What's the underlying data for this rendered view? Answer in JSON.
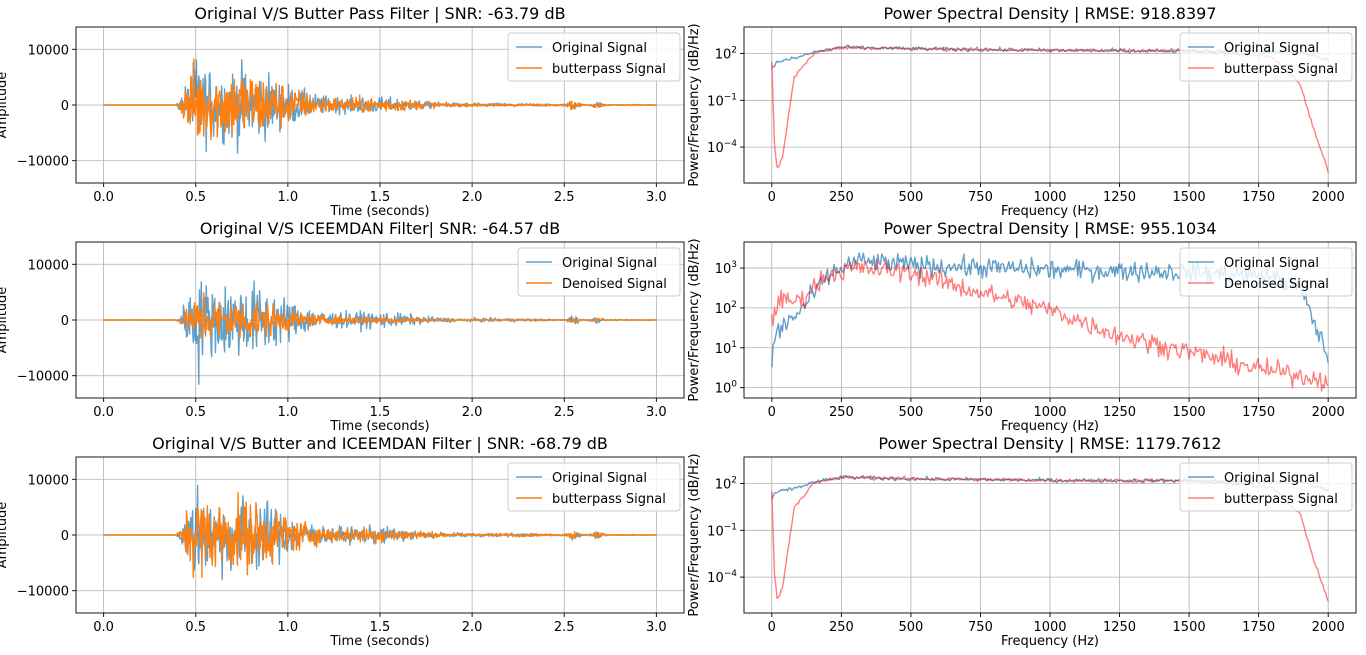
{
  "chart_data": [
    {
      "type": "line",
      "title": "Original V/S Butter Pass Filter | SNR: -63.79 dB",
      "xlabel": "Time (seconds)",
      "ylabel": "Amplitude",
      "xlim": [
        -0.15,
        3.15
      ],
      "ylim": [
        -14000,
        14000
      ],
      "xticks": [
        0.0,
        0.5,
        1.0,
        1.5,
        2.0,
        2.5,
        3.0
      ],
      "xtick_labels": [
        "0.0",
        "0.5",
        "1.0",
        "1.5",
        "2.0",
        "2.5",
        "3.0"
      ],
      "yticks": [
        -10000,
        0,
        10000
      ],
      "ytick_labels": [
        "−10000",
        "0",
        "10000"
      ],
      "yscale": "linear",
      "grid": true,
      "legend": "upper right",
      "series": [
        {
          "name": "Original Signal",
          "color": "#1f77b4",
          "alpha": 0.7,
          "envelope": {
            "onset": 0.39,
            "peak_time": 0.52,
            "peak": 12000,
            "decay": 0.45,
            "sub_bursts": [
              [
                2.55,
                900
              ],
              [
                2.68,
                600
              ]
            ]
          }
        },
        {
          "name": "butterpass Signal",
          "color": "#ff7f0e",
          "alpha": 1.0,
          "envelope": {
            "onset": 0.39,
            "peak_time": 0.52,
            "peak": 11500,
            "decay": 0.45,
            "sub_bursts": [
              [
                2.55,
                850
              ],
              [
                2.68,
                560
              ]
            ]
          }
        }
      ]
    },
    {
      "type": "line",
      "title": "Power Spectral Density | RMSE: 918.8397",
      "xlabel": "Frequency (Hz)",
      "ylabel": "Power/Frequency (dB/Hz)",
      "xlim": [
        -100,
        2100
      ],
      "yscale": "log",
      "ylim": [
        5e-07,
        5000
      ],
      "xticks": [
        0,
        250,
        500,
        750,
        1000,
        1250,
        1500,
        1750,
        2000
      ],
      "xtick_labels": [
        "0",
        "250",
        "500",
        "750",
        "1000",
        "1250",
        "1500",
        "1750",
        "2000"
      ],
      "yticks": [
        0.0001,
        0.1,
        100
      ],
      "ytick_labels": [
        "10",
        "10",
        "10"
      ],
      "ytick_exponents": [
        "−4",
        "−1",
        "2"
      ],
      "grid": true,
      "legend": "upper right",
      "series": [
        {
          "name": "Original Signal",
          "color": "#1f77b4",
          "alpha": 0.7,
          "noise": 0.12,
          "points": [
            [
              0,
              10
            ],
            [
              20,
              30
            ],
            [
              60,
              40
            ],
            [
              100,
              60
            ],
            [
              150,
              120
            ],
            [
              250,
              250
            ],
            [
              500,
              200
            ],
            [
              1000,
              160
            ],
            [
              1500,
              150
            ],
            [
              1750,
              130
            ],
            [
              1900,
              120
            ],
            [
              2000,
              40
            ]
          ]
        },
        {
          "name": "butterpass Signal",
          "color": "#ff0000",
          "alpha": 0.5,
          "noise": 0.12,
          "points": [
            [
              0,
              30
            ],
            [
              10,
              0.0001
            ],
            [
              20,
              3e-06
            ],
            [
              40,
              3e-05
            ],
            [
              80,
              3
            ],
            [
              150,
              100
            ],
            [
              250,
              250
            ],
            [
              500,
              200
            ],
            [
              1000,
              160
            ],
            [
              1500,
              150
            ],
            [
              1800,
              60
            ],
            [
              1900,
              1
            ],
            [
              1950,
              0.001
            ],
            [
              2000,
              3e-06
            ]
          ]
        }
      ]
    },
    {
      "type": "line",
      "title": "Original V/S ICEEMDAN Filter| SNR: -64.57 dB",
      "xlabel": "Time (seconds)",
      "ylabel": "Amplitude",
      "xlim": [
        -0.15,
        3.15
      ],
      "ylim": [
        -14000,
        14000
      ],
      "xticks": [
        0.0,
        0.5,
        1.0,
        1.5,
        2.0,
        2.5,
        3.0
      ],
      "xtick_labels": [
        "0.0",
        "0.5",
        "1.0",
        "1.5",
        "2.0",
        "2.5",
        "3.0"
      ],
      "yticks": [
        -10000,
        0,
        10000
      ],
      "ytick_labels": [
        "−10000",
        "0",
        "10000"
      ],
      "yscale": "linear",
      "grid": true,
      "legend": "upper right",
      "series": [
        {
          "name": "Original Signal",
          "color": "#1f77b4",
          "alpha": 0.7,
          "envelope": {
            "onset": 0.39,
            "peak_time": 0.52,
            "peak": 12000,
            "decay": 0.45,
            "sub_bursts": [
              [
                2.55,
                900
              ],
              [
                2.68,
                600
              ]
            ]
          }
        },
        {
          "name": "Denoised Signal",
          "color": "#ff7f0e",
          "alpha": 1.0,
          "envelope": {
            "onset": 0.39,
            "peak_time": 0.55,
            "peak": 6500,
            "decay": 0.4,
            "sub_bursts": [
              [
                2.55,
                500
              ],
              [
                2.68,
                350
              ]
            ]
          }
        }
      ]
    },
    {
      "type": "line",
      "title": "Power Spectral Density | RMSE: 955.1034",
      "xlabel": "Frequency (Hz)",
      "ylabel": "Power/Frequency (dB/Hz)",
      "xlim": [
        -100,
        2100
      ],
      "yscale": "log",
      "ylim": [
        0.55,
        4500
      ],
      "xticks": [
        0,
        250,
        500,
        750,
        1000,
        1250,
        1500,
        1750,
        2000
      ],
      "xtick_labels": [
        "0",
        "250",
        "500",
        "750",
        "1000",
        "1250",
        "1500",
        "1750",
        "2000"
      ],
      "yticks": [
        1,
        10,
        100,
        1000
      ],
      "ytick_labels": [
        "10",
        "10",
        "10",
        "10"
      ],
      "ytick_exponents": [
        "0",
        "1",
        "2",
        "3"
      ],
      "grid": true,
      "legend": "upper right",
      "series": [
        {
          "name": "Original Signal",
          "color": "#1f77b4",
          "alpha": 0.7,
          "noise": 0.25,
          "points": [
            [
              0,
              4
            ],
            [
              10,
              20
            ],
            [
              50,
              40
            ],
            [
              100,
              80
            ],
            [
              200,
              600
            ],
            [
              300,
              1500
            ],
            [
              500,
              1200
            ],
            [
              1000,
              900
            ],
            [
              1500,
              800
            ],
            [
              1800,
              600
            ],
            [
              1900,
              300
            ],
            [
              2000,
              6
            ]
          ]
        },
        {
          "name": "Denoised Signal",
          "color": "#ff0000",
          "alpha": 0.5,
          "noise": 0.25,
          "points": [
            [
              0,
              40
            ],
            [
              20,
              150
            ],
            [
              100,
              150
            ],
            [
              200,
              700
            ],
            [
              300,
              1000
            ],
            [
              500,
              800
            ],
            [
              700,
              300
            ],
            [
              1000,
              90
            ],
            [
              1250,
              20
            ],
            [
              1500,
              8
            ],
            [
              1750,
              3
            ],
            [
              1900,
              2
            ],
            [
              2000,
              1.5
            ]
          ]
        }
      ]
    },
    {
      "type": "line",
      "title": "Original V/S Butter and ICEEMDAN Filter | SNR: -68.79 dB",
      "xlabel": "Time (seconds)",
      "ylabel": "Amplitude",
      "xlim": [
        -0.15,
        3.15
      ],
      "ylim": [
        -14000,
        14000
      ],
      "xticks": [
        0.0,
        0.5,
        1.0,
        1.5,
        2.0,
        2.5,
        3.0
      ],
      "xtick_labels": [
        "0.0",
        "0.5",
        "1.0",
        "1.5",
        "2.0",
        "2.5",
        "3.0"
      ],
      "yticks": [
        -10000,
        0,
        10000
      ],
      "ytick_labels": [
        "−10000",
        "0",
        "10000"
      ],
      "yscale": "linear",
      "grid": true,
      "legend": "upper right",
      "series": [
        {
          "name": "Original Signal",
          "color": "#1f77b4",
          "alpha": 0.7,
          "envelope": {
            "onset": 0.39,
            "peak_time": 0.52,
            "peak": 12000,
            "decay": 0.45,
            "sub_bursts": [
              [
                2.55,
                900
              ],
              [
                2.68,
                600
              ]
            ]
          }
        },
        {
          "name": "butterpass Signal",
          "color": "#ff7f0e",
          "alpha": 1.0,
          "envelope": {
            "onset": 0.39,
            "peak_time": 0.52,
            "peak": 11500,
            "decay": 0.45,
            "sub_bursts": [
              [
                2.55,
                850
              ],
              [
                2.68,
                560
              ]
            ]
          }
        }
      ]
    },
    {
      "type": "line",
      "title": "Power Spectral Density | RMSE: 1179.7612",
      "xlabel": "Frequency (Hz)",
      "ylabel": "Power/Frequency (dB/Hz)",
      "xlim": [
        -100,
        2100
      ],
      "yscale": "log",
      "ylim": [
        5e-07,
        5000
      ],
      "xticks": [
        0,
        250,
        500,
        750,
        1000,
        1250,
        1500,
        1750,
        2000
      ],
      "xtick_labels": [
        "0",
        "250",
        "500",
        "750",
        "1000",
        "1250",
        "1500",
        "1750",
        "2000"
      ],
      "yticks": [
        0.0001,
        0.1,
        100
      ],
      "ytick_labels": [
        "10",
        "10",
        "10"
      ],
      "ytick_exponents": [
        "−4",
        "−1",
        "2"
      ],
      "grid": true,
      "legend": "upper right",
      "series": [
        {
          "name": "Original Signal",
          "color": "#1f77b4",
          "alpha": 0.7,
          "noise": 0.12,
          "points": [
            [
              0,
              10
            ],
            [
              20,
              30
            ],
            [
              60,
              40
            ],
            [
              100,
              60
            ],
            [
              150,
              120
            ],
            [
              250,
              250
            ],
            [
              500,
              200
            ],
            [
              1000,
              160
            ],
            [
              1500,
              150
            ],
            [
              1750,
              130
            ],
            [
              1900,
              120
            ],
            [
              2000,
              40
            ]
          ]
        },
        {
          "name": "butterpass Signal",
          "color": "#ff0000",
          "alpha": 0.5,
          "noise": 0.12,
          "points": [
            [
              0,
              30
            ],
            [
              10,
              0.0001
            ],
            [
              20,
              3e-06
            ],
            [
              40,
              3e-05
            ],
            [
              80,
              3
            ],
            [
              150,
              100
            ],
            [
              250,
              250
            ],
            [
              500,
              200
            ],
            [
              1000,
              160
            ],
            [
              1500,
              150
            ],
            [
              1800,
              60
            ],
            [
              1900,
              1
            ],
            [
              1950,
              0.001
            ],
            [
              2000,
              3e-06
            ]
          ]
        }
      ]
    }
  ]
}
